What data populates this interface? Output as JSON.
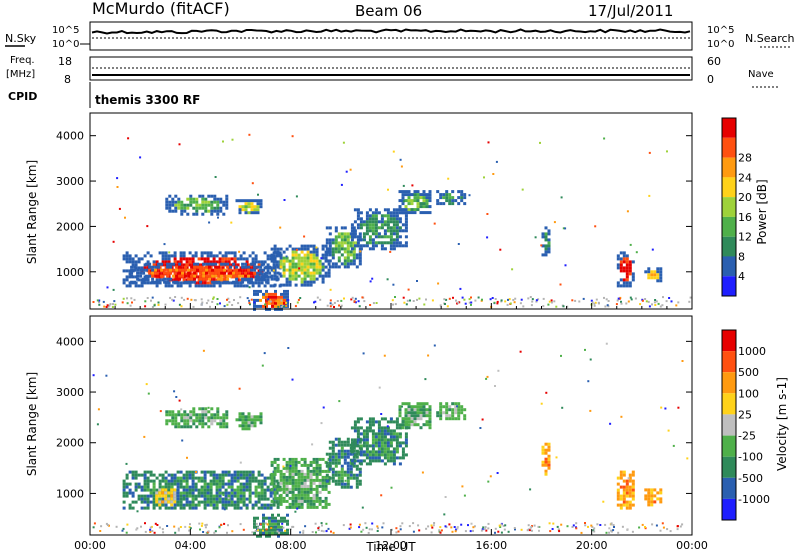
{
  "header": {
    "station": "McMurdo (fitACF)",
    "beam": "Beam 06",
    "date": "17/Jul/2011"
  },
  "top_panel": {
    "left_label": "N.Sky",
    "right_label": "N.Search",
    "left_ticks": [
      "10^5",
      "10^0"
    ],
    "right_ticks": [
      "10^5",
      "10^0"
    ]
  },
  "freq_panel": {
    "left_label_1": "Freq.",
    "left_label_2": "[MHz]",
    "left_ticks": [
      "18",
      "8"
    ],
    "right_label": "Nave",
    "right_ticks": [
      "60",
      "0"
    ]
  },
  "cpid": {
    "label": "CPID",
    "value": "themis 3300 RF"
  },
  "colors": {
    "power": [
      "#1f1fff",
      "#2a5fb0",
      "#2f8a5a",
      "#4fb04a",
      "#9ed23a",
      "#ffd21a",
      "#ff9a10",
      "#ff5010",
      "#e60000"
    ],
    "velocity": [
      "#1f1fff",
      "#2a5fb0",
      "#2f8a5a",
      "#4fb04a",
      "#bfbfbf",
      "#ffd21a",
      "#ff9a10",
      "#ff5010",
      "#e60000"
    ],
    "ground": "#b3b3b3"
  },
  "chart_data": [
    {
      "type": "heatmap",
      "name": "power",
      "ylabel": "Slant Range [km]",
      "xlim": [
        0,
        24
      ],
      "ylim": [
        180,
        4500
      ],
      "yticks": [
        "1000",
        "2000",
        "3000",
        "4000"
      ],
      "colorbar_label": "Power [dB]",
      "colorbar_ticks": [
        "4",
        "8",
        "12",
        "16",
        "20",
        "24",
        "28"
      ],
      "regions": [
        {
          "x0": 1.3,
          "x1": 7.6,
          "y0": 700,
          "y1": 1450,
          "level": 8
        },
        {
          "x0": 1.6,
          "x1": 7.2,
          "y0": 800,
          "y1": 1200,
          "level": 7
        },
        {
          "x0": 7.2,
          "x1": 9.5,
          "y0": 700,
          "y1": 1600,
          "level": 4
        },
        {
          "x0": 9.4,
          "x1": 10.8,
          "y0": 1100,
          "y1": 2000,
          "level": 3
        },
        {
          "x0": 10.4,
          "x1": 12.6,
          "y0": 1500,
          "y1": 2400,
          "level": 2
        },
        {
          "x0": 12.3,
          "x1": 13.6,
          "y0": 2300,
          "y1": 2800,
          "level": 3
        },
        {
          "x0": 13.8,
          "x1": 14.9,
          "y0": 2500,
          "y1": 2800,
          "level": 2
        },
        {
          "x0": 3.0,
          "x1": 5.5,
          "y0": 2300,
          "y1": 2700,
          "level": 3
        },
        {
          "x0": 5.8,
          "x1": 6.8,
          "y0": 2300,
          "y1": 2600,
          "level": 4
        },
        {
          "x0": 21.0,
          "x1": 21.6,
          "y0": 700,
          "y1": 1450,
          "level": 8
        },
        {
          "x0": 22.1,
          "x1": 22.7,
          "y0": 800,
          "y1": 1100,
          "level": 5
        },
        {
          "x0": 18.0,
          "x1": 18.3,
          "y0": 1400,
          "y1": 2000,
          "level": 2
        },
        {
          "x0": 6.5,
          "x1": 7.9,
          "y0": 180,
          "y1": 600,
          "level": 7
        }
      ]
    },
    {
      "type": "heatmap",
      "name": "velocity",
      "ylabel": "Slant Range [km]",
      "xlabel": "Time UT",
      "xlim": [
        0,
        24
      ],
      "ylim": [
        180,
        4500
      ],
      "xticks": [
        "00:00",
        "04:00",
        "08:00",
        "12:00",
        "16:00",
        "20:00",
        "00:00"
      ],
      "yticks": [
        "1000",
        "2000",
        "3000",
        "4000"
      ],
      "colorbar_label": "Velocity [m s-1]",
      "colorbar_ticks": [
        "1000",
        "500",
        "100",
        "25",
        "-25",
        "-100",
        "-500",
        "-1000"
      ],
      "regions": [
        {
          "x0": 1.3,
          "x1": 7.6,
          "y0": 700,
          "y1": 1450,
          "level": 2
        },
        {
          "x0": 7.2,
          "x1": 9.5,
          "y0": 700,
          "y1": 1700,
          "level": 3
        },
        {
          "x0": 9.4,
          "x1": 10.8,
          "y0": 1100,
          "y1": 2100,
          "level": 2
        },
        {
          "x0": 10.4,
          "x1": 12.6,
          "y0": 1600,
          "y1": 2500,
          "level": 2
        },
        {
          "x0": 12.3,
          "x1": 13.6,
          "y0": 2300,
          "y1": 2800,
          "level": 3
        },
        {
          "x0": 13.8,
          "x1": 14.9,
          "y0": 2500,
          "y1": 2800,
          "level": 3
        },
        {
          "x0": 3.0,
          "x1": 5.5,
          "y0": 2300,
          "y1": 2700,
          "level": 3
        },
        {
          "x0": 5.8,
          "x1": 6.8,
          "y0": 2300,
          "y1": 2600,
          "level": 3
        },
        {
          "x0": 21.0,
          "x1": 21.7,
          "y0": 700,
          "y1": 1450,
          "level": 6
        },
        {
          "x0": 22.1,
          "x1": 22.7,
          "y0": 800,
          "y1": 1100,
          "level": 6
        },
        {
          "x0": 18.0,
          "x1": 18.3,
          "y0": 1400,
          "y1": 2000,
          "level": 6
        },
        {
          "x0": 2.6,
          "x1": 3.4,
          "y0": 800,
          "y1": 1100,
          "level": 5
        },
        {
          "x0": 6.5,
          "x1": 7.9,
          "y0": 180,
          "y1": 600,
          "level": 2
        }
      ]
    }
  ]
}
